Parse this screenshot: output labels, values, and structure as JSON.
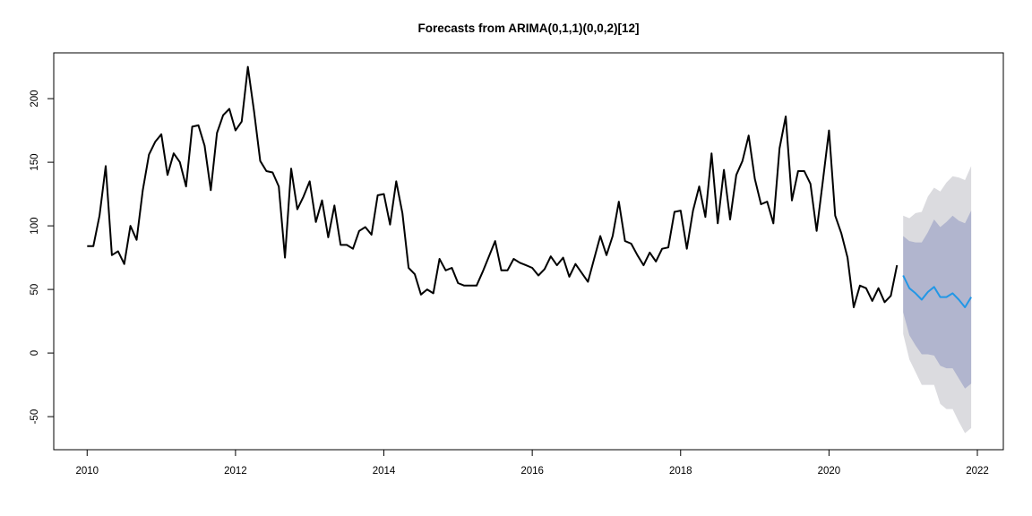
{
  "chart_data": {
    "type": "line",
    "title": "Forecasts from ARIMA(0,1,1)(0,0,2)[12]",
    "xlabel": "",
    "ylabel": "",
    "xlim": [
      2009.55,
      2022.35
    ],
    "ylim": [
      -76,
      236
    ],
    "grid": false,
    "x_ticks": [
      {
        "value": 2010,
        "label": "2010"
      },
      {
        "value": 2012,
        "label": "2012"
      },
      {
        "value": 2014,
        "label": "2014"
      },
      {
        "value": 2016,
        "label": "2016"
      },
      {
        "value": 2018,
        "label": "2018"
      },
      {
        "value": 2020,
        "label": "2020"
      },
      {
        "value": 2022,
        "label": "2022"
      }
    ],
    "y_ticks": [
      {
        "value": -50,
        "label": "-50"
      },
      {
        "value": 0,
        "label": "0"
      },
      {
        "value": 50,
        "label": "50"
      },
      {
        "value": 100,
        "label": "100"
      },
      {
        "value": 150,
        "label": "150"
      },
      {
        "value": 200,
        "label": "200"
      }
    ],
    "colors": {
      "observed": "#000000",
      "forecast": "#2297E6",
      "band_95": "#DBDBDF",
      "band_80": "#B1B5CE"
    },
    "observed": {
      "start": "2010-01",
      "frequency": 12,
      "values": [
        84,
        84,
        108,
        147,
        77,
        80,
        70,
        100,
        89,
        128,
        156,
        166,
        172,
        140,
        157,
        150,
        131,
        178,
        179,
        163,
        128,
        173,
        187,
        192,
        175,
        182,
        225,
        190,
        151,
        143,
        142,
        131,
        75,
        145,
        113,
        123,
        135,
        103,
        120,
        91,
        116,
        85,
        85,
        82,
        96,
        99,
        93,
        124,
        125,
        101,
        135,
        110,
        67,
        62,
        46,
        50,
        47,
        74,
        65,
        67,
        55,
        53,
        53,
        53,
        64,
        76,
        88,
        65,
        65,
        74,
        71,
        69,
        67,
        61,
        66,
        76,
        69,
        75,
        60,
        70,
        63,
        56,
        74,
        92,
        77,
        92,
        119,
        88,
        86,
        77,
        69,
        79,
        72,
        82,
        83,
        111,
        112,
        82,
        112,
        131,
        107,
        157,
        102,
        144,
        105,
        140,
        151,
        171,
        137,
        117,
        119,
        102,
        161,
        186,
        120,
        143,
        143,
        133,
        96,
        135,
        175,
        108,
        94,
        75,
        36,
        53,
        51,
        41,
        51,
        40,
        45,
        69
      ]
    },
    "forecast": {
      "start": "2021-01",
      "frequency": 12,
      "point": [
        61,
        51,
        47,
        42,
        48,
        52,
        44,
        44,
        47,
        42,
        36,
        44
      ],
      "lo80": [
        32,
        14,
        6,
        -1,
        -1,
        -2,
        -10,
        -12,
        -12,
        -20,
        -28,
        -24
      ],
      "hi80": [
        92,
        88,
        87,
        87,
        95,
        105,
        99,
        103,
        108,
        104,
        102,
        112
      ],
      "lo95": [
        15,
        -5,
        -15,
        -25,
        -25,
        -25,
        -40,
        -44,
        -44,
        -54,
        -63,
        -59
      ],
      "hi95": [
        108,
        106,
        110,
        111,
        123,
        130,
        127,
        134,
        139,
        138,
        136,
        147
      ]
    }
  }
}
